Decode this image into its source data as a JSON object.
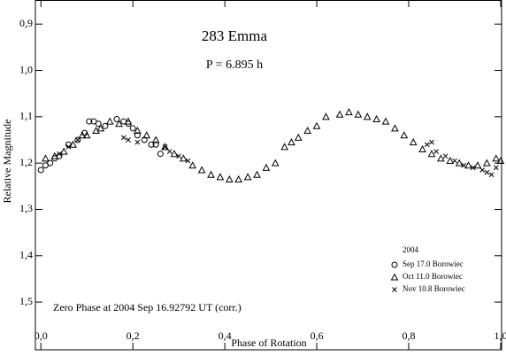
{
  "chart_data": {
    "type": "scatter",
    "title": "283 Emma",
    "subtitle": "P = 6.895 h",
    "annotation": "Zero Phase at 2004 Sep 16.92792 UT (corr.)",
    "x_label": "Phase of Rotation",
    "y_label": "Relative Magnitude",
    "legend_title": "2004",
    "legend_position": "lower right",
    "grid": false,
    "xlim": [
      -0.012,
      1.002
    ],
    "ylim": [
      1.603,
      0.848
    ],
    "xticks": [
      {
        "value": 0,
        "label": "0,0"
      },
      {
        "value": 0.2,
        "label": "0,2"
      },
      {
        "value": 0.4,
        "label": "0,4"
      },
      {
        "value": 0.6,
        "label": "0,6"
      },
      {
        "value": 0.8,
        "label": "0,8"
      },
      {
        "value": 1,
        "label": "1,0"
      }
    ],
    "yticks": [
      {
        "value": 0.9,
        "label": "0,9"
      },
      {
        "value": 1.0,
        "label": "1,0"
      },
      {
        "value": 1.1,
        "label": "1,1"
      },
      {
        "value": 1.2,
        "label": "1,2"
      },
      {
        "value": 1.3,
        "label": "1,3"
      },
      {
        "value": 1.4,
        "label": "1,4"
      },
      {
        "value": 1.5,
        "label": "1,5"
      }
    ],
    "series": [
      {
        "name": "Sep 17.0 Borowiec",
        "marker": "circle",
        "color": "#000000",
        "x": [
          0,
          0.01,
          0.02,
          0.03,
          0.04,
          0.06,
          0.08,
          0.095,
          0.105,
          0.115,
          0.125,
          0.14,
          0.165,
          0.18,
          0.19,
          0.2,
          0.21,
          0.225,
          0.24,
          0.25,
          0.26
        ],
        "values": [
          1.215,
          1.205,
          1.2,
          1.19,
          1.185,
          1.16,
          1.15,
          1.135,
          1.11,
          1.11,
          1.115,
          1.12,
          1.105,
          1.11,
          1.115,
          1.125,
          1.14,
          1.15,
          1.16,
          1.16,
          1.18
        ]
      },
      {
        "name": "Oct 11.0 Borowiec",
        "marker": "triangle",
        "color": "#000000",
        "x": [
          0.01,
          0.03,
          0.05,
          0.07,
          0.09,
          0.1,
          0.12,
          0.13,
          0.15,
          0.17,
          0.19,
          0.21,
          0.23,
          0.25,
          0.27,
          0.29,
          0.31,
          0.33,
          0.35,
          0.37,
          0.39,
          0.41,
          0.43,
          0.45,
          0.47,
          0.49,
          0.51,
          0.53,
          0.545,
          0.56,
          0.58,
          0.6,
          0.62,
          0.65,
          0.67,
          0.69,
          0.71,
          0.73,
          0.75,
          0.77,
          0.79,
          0.81,
          0.83,
          0.85,
          0.87,
          0.89,
          0.91,
          0.93,
          0.95,
          0.97,
          0.99,
          1.0
        ],
        "values": [
          1.19,
          1.185,
          1.175,
          1.16,
          1.14,
          1.14,
          1.13,
          1.125,
          1.11,
          1.115,
          1.11,
          1.13,
          1.14,
          1.15,
          1.165,
          1.18,
          1.19,
          1.205,
          1.215,
          1.225,
          1.23,
          1.235,
          1.235,
          1.23,
          1.225,
          1.21,
          1.2,
          1.165,
          1.155,
          1.145,
          1.13,
          1.12,
          1.1,
          1.095,
          1.09,
          1.095,
          1.1,
          1.105,
          1.11,
          1.125,
          1.14,
          1.155,
          1.17,
          1.18,
          1.19,
          1.195,
          1.2,
          1.205,
          1.205,
          1.2,
          1.19,
          1.195
        ]
      },
      {
        "name": "Nov 10.8 Borowiec",
        "marker": "cross",
        "color": "#000000",
        "x": [
          0.04,
          0.06,
          0.08,
          0.18,
          0.19,
          0.21,
          0.27,
          0.28,
          0.3,
          0.32,
          0.84,
          0.85,
          0.86,
          0.88,
          0.9,
          0.92,
          0.94,
          0.96,
          0.97,
          0.98,
          0.99
        ],
        "values": [
          1.18,
          1.165,
          1.15,
          1.145,
          1.15,
          1.155,
          1.165,
          1.175,
          1.185,
          1.195,
          1.16,
          1.155,
          1.175,
          1.185,
          1.195,
          1.205,
          1.21,
          1.215,
          1.22,
          1.225,
          1.21
        ]
      }
    ]
  }
}
